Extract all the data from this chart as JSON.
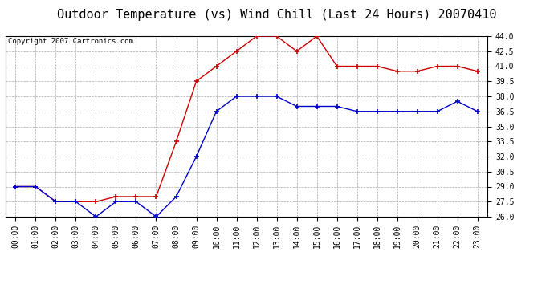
{
  "title": "Outdoor Temperature (vs) Wind Chill (Last 24 Hours) 20070410",
  "copyright": "Copyright 2007 Cartronics.com",
  "x_labels": [
    "00:00",
    "01:00",
    "02:00",
    "03:00",
    "04:00",
    "05:00",
    "06:00",
    "07:00",
    "08:00",
    "09:00",
    "10:00",
    "11:00",
    "12:00",
    "13:00",
    "14:00",
    "15:00",
    "16:00",
    "17:00",
    "18:00",
    "19:00",
    "20:00",
    "21:00",
    "22:00",
    "23:00"
  ],
  "red_data": [
    29.0,
    29.0,
    27.5,
    27.5,
    27.5,
    28.0,
    28.0,
    28.0,
    33.5,
    39.5,
    41.0,
    42.5,
    44.0,
    44.0,
    42.5,
    44.0,
    41.0,
    41.0,
    41.0,
    40.5,
    40.5,
    41.0,
    41.0,
    40.5
  ],
  "blue_data": [
    29.0,
    29.0,
    27.5,
    27.5,
    26.0,
    27.5,
    27.5,
    26.0,
    28.0,
    32.0,
    36.5,
    38.0,
    38.0,
    38.0,
    37.0,
    37.0,
    37.0,
    36.5,
    36.5,
    36.5,
    36.5,
    36.5,
    37.5,
    36.5
  ],
  "ylim": [
    26.0,
    44.0
  ],
  "yticks": [
    26.0,
    27.5,
    29.0,
    30.5,
    32.0,
    33.5,
    35.0,
    36.5,
    38.0,
    39.5,
    41.0,
    42.5,
    44.0
  ],
  "red_color": "#cc0000",
  "blue_color": "#0000cc",
  "bg_color": "#ffffff",
  "plot_bg": "#ffffff",
  "grid_color": "#aaaaaa",
  "title_fontsize": 11,
  "tick_fontsize": 7,
  "copyright_fontsize": 6.5
}
